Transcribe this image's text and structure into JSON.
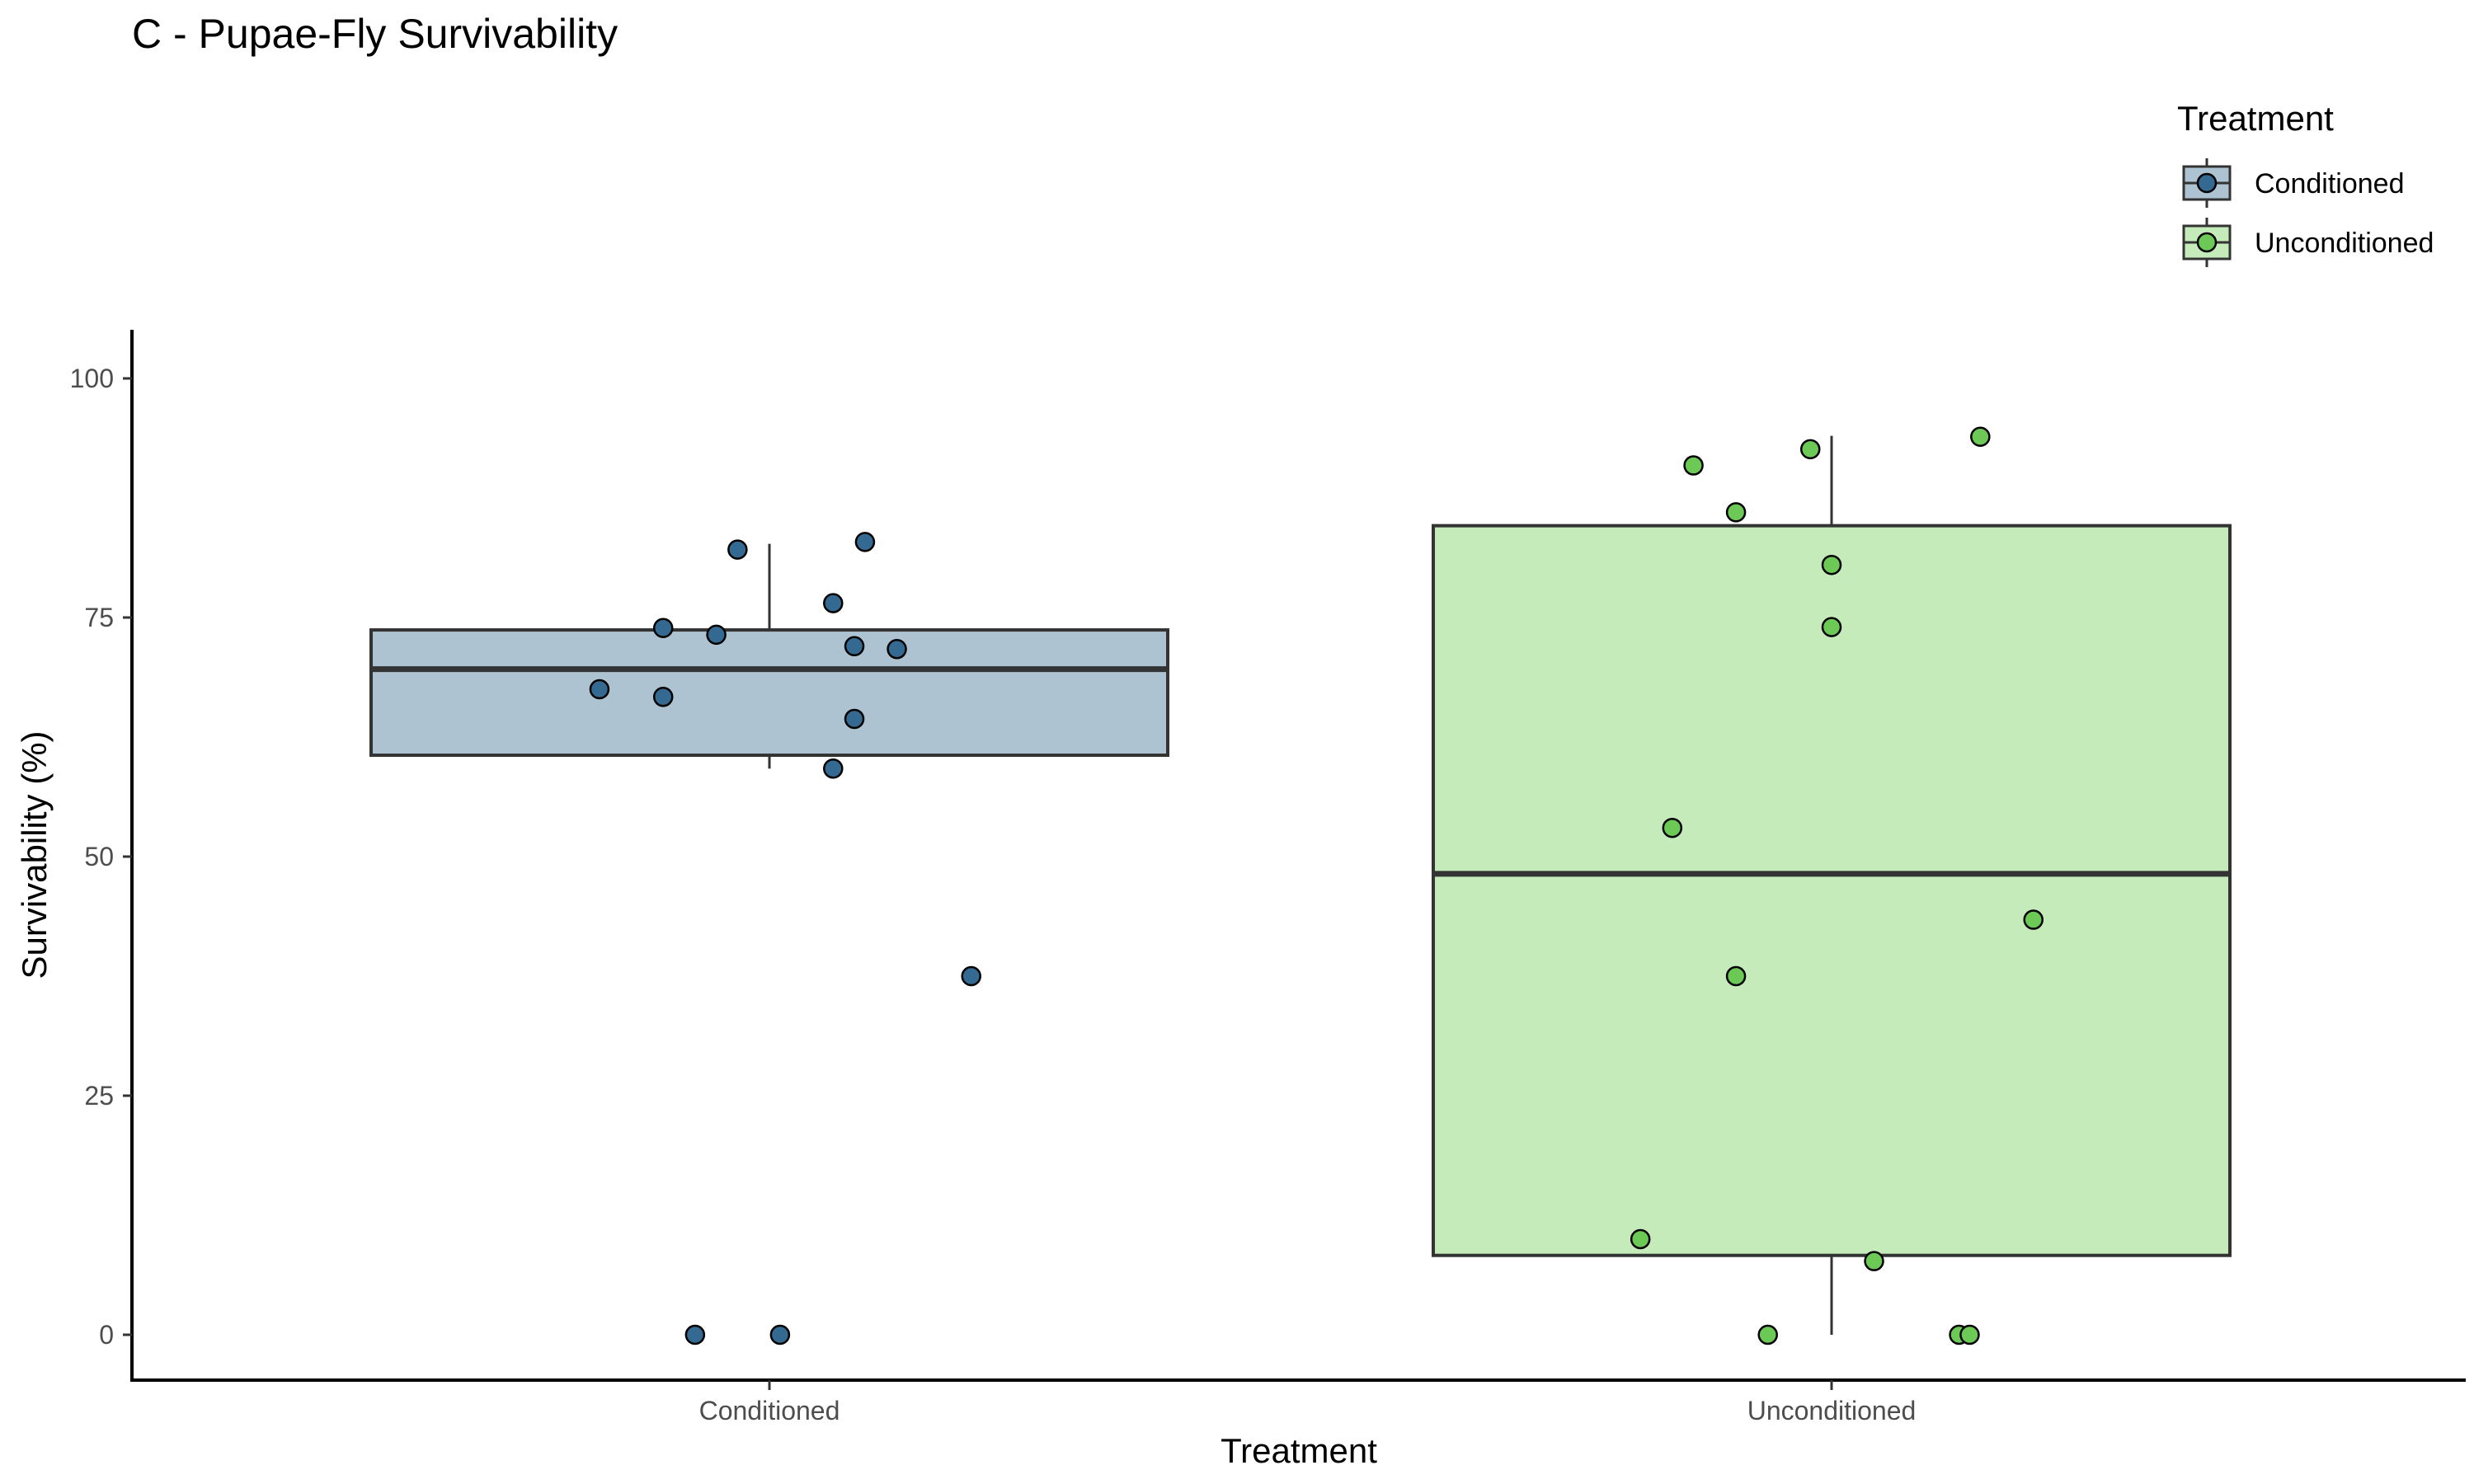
{
  "chart_data": {
    "type": "box",
    "title": "C - Pupae-Fly Survivability",
    "xlabel": "Treatment",
    "ylabel": "Survivability (%)",
    "ylim": [
      -5,
      105
    ],
    "yticks": [
      0,
      25,
      50,
      75,
      100
    ],
    "categories": [
      "Conditioned",
      "Unconditioned"
    ],
    "grid": false,
    "legend": {
      "title": "Treatment",
      "position": "top-right",
      "entries": [
        "Conditioned",
        "Unconditioned"
      ]
    },
    "series": [
      {
        "name": "Conditioned",
        "box_color": "#aec3d1",
        "point_color": "#346a92",
        "box": {
          "whisker_low": 59.2,
          "q1": 60.6,
          "median": 69.6,
          "q3": 73.7,
          "whisker_high": 82.7
        },
        "points": [
          {
            "jitter": -0.03,
            "y": 82.1
          },
          {
            "jitter": 0.09,
            "y": 82.9
          },
          {
            "jitter": 0.06,
            "y": 76.5
          },
          {
            "jitter": -0.1,
            "y": 73.9
          },
          {
            "jitter": -0.05,
            "y": 73.2
          },
          {
            "jitter": 0.08,
            "y": 72.0
          },
          {
            "jitter": 0.12,
            "y": 71.7
          },
          {
            "jitter": -0.16,
            "y": 67.5
          },
          {
            "jitter": -0.1,
            "y": 66.7
          },
          {
            "jitter": 0.08,
            "y": 64.4
          },
          {
            "jitter": 0.06,
            "y": 59.2
          },
          {
            "jitter": 0.19,
            "y": 37.5
          },
          {
            "jitter": -0.07,
            "y": 0.0
          },
          {
            "jitter": 0.01,
            "y": 0.0
          }
        ]
      },
      {
        "name": "Unconditioned",
        "box_color": "#c5ebbb",
        "point_color": "#6cc956",
        "box": {
          "whisker_low": 0.0,
          "q1": 8.3,
          "median": 48.2,
          "q3": 84.6,
          "whisker_high": 94.0
        },
        "points": [
          {
            "jitter": 0.14,
            "y": 93.9
          },
          {
            "jitter": -0.02,
            "y": 92.6
          },
          {
            "jitter": -0.13,
            "y": 90.9
          },
          {
            "jitter": -0.09,
            "y": 86.0
          },
          {
            "jitter": 0.0,
            "y": 80.5
          },
          {
            "jitter": 0.0,
            "y": 74.0
          },
          {
            "jitter": -0.15,
            "y": 53.0
          },
          {
            "jitter": 0.19,
            "y": 43.4
          },
          {
            "jitter": -0.09,
            "y": 37.5
          },
          {
            "jitter": -0.18,
            "y": 10.0
          },
          {
            "jitter": 0.04,
            "y": 7.7
          },
          {
            "jitter": -0.06,
            "y": 0.0
          },
          {
            "jitter": 0.12,
            "y": 0.0
          },
          {
            "jitter": 0.13,
            "y": 0.0
          }
        ]
      }
    ]
  }
}
